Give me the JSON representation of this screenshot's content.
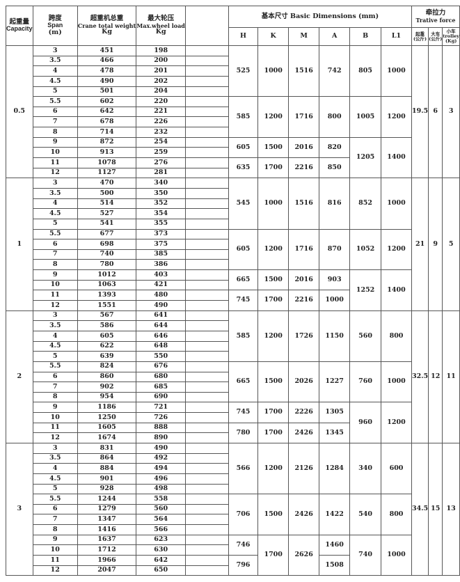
{
  "header": {
    "capacity_cn": "起重量",
    "capacity_en": "Capacity",
    "span_cn": "跨度",
    "span_en": "Span",
    "span_unit": "(m)",
    "weight_cn": "超重机总重",
    "weight_en": "Crane total weight",
    "weight_unit": "Kg",
    "load_cn": "最大轮压",
    "load_en": "Max.wheel load",
    "load_unit": "Kg",
    "dims_title": "基本尺寸  Basic  Dimensions   (mm)",
    "dims_cols": [
      "H",
      "K",
      "M",
      "A",
      "B",
      "L1"
    ],
    "force_cn": "牵拉力",
    "force_en": "Trative force",
    "force_cols": [
      {
        "cn": "起重",
        "unit": "(公斤)"
      },
      {
        "cn": "大车",
        "unit": "(公斤)"
      },
      {
        "cn": "小车",
        "en": "trolley",
        "unit": "(Kg)"
      }
    ]
  },
  "blocks": [
    {
      "capacity": "0.5",
      "rows": [
        [
          "3",
          "451",
          "198"
        ],
        [
          "3.5",
          "466",
          "200"
        ],
        [
          "4",
          "478",
          "201"
        ],
        [
          "4.5",
          "490",
          "202"
        ],
        [
          "5",
          "501",
          "204"
        ],
        [
          "5.5",
          "602",
          "220"
        ],
        [
          "6",
          "642",
          "221"
        ],
        [
          "7",
          "678",
          "226"
        ],
        [
          "8",
          "714",
          "232"
        ],
        [
          "9",
          "872",
          "254"
        ],
        [
          "10",
          "913",
          "259"
        ],
        [
          "11",
          "1078",
          "276"
        ],
        [
          "12",
          "1127",
          "281"
        ]
      ],
      "dims": [
        [
          "525",
          "1000",
          "1516",
          "742",
          "805",
          "1000"
        ],
        [
          "585",
          "1200",
          "1716",
          "800",
          "1005",
          "1200"
        ],
        [
          [
            "605",
            "635"
          ],
          [
            "1500",
            "1700"
          ],
          [
            "2016",
            "2216"
          ],
          [
            "820",
            "850"
          ],
          "1205",
          "1400"
        ]
      ],
      "force": [
        "19.5",
        "6",
        "3"
      ]
    },
    {
      "capacity": "1",
      "rows": [
        [
          "3",
          "470",
          "340"
        ],
        [
          "3.5",
          "500",
          "350"
        ],
        [
          "4",
          "514",
          "352"
        ],
        [
          "4.5",
          "527",
          "354"
        ],
        [
          "5",
          "541",
          "355"
        ],
        [
          "5.5",
          "677",
          "373"
        ],
        [
          "6",
          "698",
          "375"
        ],
        [
          "7",
          "740",
          "385"
        ],
        [
          "8",
          "780",
          "386"
        ],
        [
          "9",
          "1012",
          "403"
        ],
        [
          "10",
          "1063",
          "421"
        ],
        [
          "11",
          "1393",
          "480"
        ],
        [
          "12",
          "1551",
          "490"
        ]
      ],
      "dims": [
        [
          "545",
          "1000",
          "1516",
          "816",
          "852",
          "1000"
        ],
        [
          "605",
          "1200",
          "1716",
          "870",
          "1052",
          "1200"
        ],
        [
          [
            "665",
            "745"
          ],
          [
            "1500",
            "1700"
          ],
          [
            "2016",
            "2216"
          ],
          [
            "903",
            "1000"
          ],
          "1252",
          "1400"
        ]
      ],
      "force": [
        "21",
        "9",
        "5"
      ]
    },
    {
      "capacity": "2",
      "rows": [
        [
          "3",
          "567",
          "641"
        ],
        [
          "3.5",
          "586",
          "644"
        ],
        [
          "4",
          "605",
          "646"
        ],
        [
          "4.5",
          "622",
          "648"
        ],
        [
          "5",
          "639",
          "550"
        ],
        [
          "5.5",
          "824",
          "676"
        ],
        [
          "6",
          "860",
          "680"
        ],
        [
          "7",
          "902",
          "685"
        ],
        [
          "8",
          "954",
          "690"
        ],
        [
          "9",
          "1186",
          "721"
        ],
        [
          "10",
          "1250",
          "726"
        ],
        [
          "11",
          "1605",
          "888"
        ],
        [
          "12",
          "1674",
          "890"
        ]
      ],
      "dims": [
        [
          "585",
          "1200",
          "1726",
          "1150",
          "560",
          "800"
        ],
        [
          "665",
          "1500",
          "2026",
          "1227",
          "760",
          "1000"
        ],
        [
          [
            "745",
            "780"
          ],
          [
            "1700",
            "1700"
          ],
          [
            "2226",
            "2426"
          ],
          [
            "1305",
            "1345"
          ],
          "960",
          "1200"
        ]
      ],
      "force": [
        "32.5",
        "12",
        "11"
      ]
    },
    {
      "capacity": "3",
      "rows": [
        [
          "3",
          "831",
          "490"
        ],
        [
          "3.5",
          "864",
          "492"
        ],
        [
          "4",
          "884",
          "494"
        ],
        [
          "4.5",
          "901",
          "496"
        ],
        [
          "5",
          "928",
          "498"
        ],
        [
          "5.5",
          "1244",
          "558"
        ],
        [
          "6",
          "1279",
          "560"
        ],
        [
          "7",
          "1347",
          "564"
        ],
        [
          "8",
          "1416",
          "566"
        ],
        [
          "9",
          "1637",
          "623"
        ],
        [
          "10",
          "1712",
          "630"
        ],
        [
          "11",
          "1966",
          "642"
        ],
        [
          "12",
          "2047",
          "650"
        ]
      ],
      "dims": [
        [
          "566",
          "1200",
          "2126",
          "1284",
          "340",
          "600"
        ],
        [
          "706",
          "1500",
          "2426",
          "1422",
          "540",
          "800"
        ],
        [
          [
            "746",
            "796"
          ],
          "1700",
          "2626",
          [
            "1460",
            "1508"
          ],
          "740",
          "1000"
        ]
      ],
      "force": [
        "34.5",
        "15",
        "13"
      ]
    }
  ]
}
